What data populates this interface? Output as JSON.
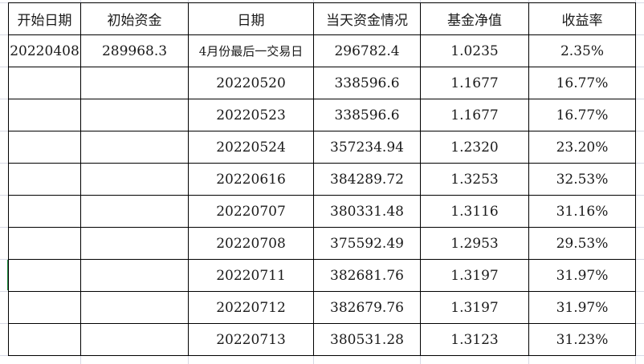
{
  "headers": [
    "开始日期",
    "初始资金",
    "日期",
    "当天资金情况",
    "基金净值",
    "收益率"
  ],
  "rows": [
    [
      "20220408",
      "289968.3",
      "4月份最后一交易日",
      "296782.4",
      "1.0235",
      "2.35%"
    ],
    [
      "",
      "",
      "20220520",
      "338596.6",
      "1.1677",
      "16.77%"
    ],
    [
      "",
      "",
      "20220523",
      "338596.6",
      "1.1677",
      "16.77%"
    ],
    [
      "",
      "",
      "20220524",
      "357234.94",
      "1.2320",
      "23.20%"
    ],
    [
      "",
      "",
      "20220616",
      "384289.72",
      "1.3253",
      "32.53%"
    ],
    [
      "",
      "",
      "20220707",
      "380331.48",
      "1.3116",
      "31.16%"
    ],
    [
      "",
      "",
      "20220708",
      "375592.49",
      "1.2953",
      "29.53%"
    ],
    [
      "",
      "",
      "20220711",
      "382681.76",
      "1.3197",
      "31.97%"
    ],
    [
      "",
      "",
      "20220712",
      "382679.76",
      "1.3197",
      "31.97%"
    ],
    [
      "",
      "",
      "20220713",
      "380531.28",
      "1.3123",
      "31.23%"
    ]
  ]
}
